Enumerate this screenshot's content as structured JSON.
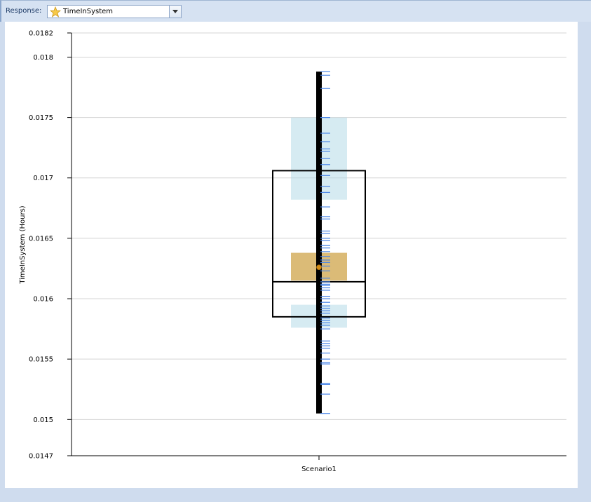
{
  "toolbar": {
    "response_label": "Response:",
    "response_value": "TimeInSystem",
    "response_icon": "star-icon"
  },
  "colors": {
    "accent_box": "#add8e6",
    "mean_box": "#d2aa55",
    "mean_point": "#d28c14",
    "observation": "#4a86e8",
    "whisker": "#000000"
  },
  "chart_data": {
    "type": "boxplot",
    "ylabel": "TimeInSystem (Hours)",
    "xlabel": "",
    "ylim": [
      0.0147,
      0.0182
    ],
    "yticks": [
      "0.0147",
      "0.015",
      "0.0155",
      "0.016",
      "0.0165",
      "0.017",
      "0.0175",
      "0.018",
      "0.0182"
    ],
    "grid": true,
    "categories": [
      "Scenario1"
    ],
    "series": [
      {
        "min": 0.01505,
        "max": 0.01788,
        "q1": 0.01585,
        "median": 0.01614,
        "q3": 0.01706,
        "mean": 0.01626,
        "mean_ci": [
          0.01615,
          0.01638
        ],
        "lower_pct_ci": [
          0.01576,
          0.01595
        ],
        "upper_pct_ci": [
          0.01682,
          0.0175
        ],
        "observations": [
          0.01788,
          0.01785,
          0.01774,
          0.0175,
          0.01737,
          0.0173,
          0.01724,
          0.01722,
          0.01716,
          0.01711,
          0.01702,
          0.01693,
          0.01688,
          0.01676,
          0.01668,
          0.01666,
          0.01656,
          0.01654,
          0.0165,
          0.01648,
          0.01644,
          0.01642,
          0.01639,
          0.01635,
          0.01632,
          0.0163,
          0.01627,
          0.01623,
          0.01617,
          0.01614,
          0.01612,
          0.01611,
          0.01609,
          0.01607,
          0.01602,
          0.016,
          0.01597,
          0.01594,
          0.01592,
          0.0159,
          0.01588,
          0.01584,
          0.01582,
          0.0158,
          0.01578,
          0.01575,
          0.01565,
          0.01563,
          0.01561,
          0.01559,
          0.01555,
          0.0155,
          0.01547,
          0.01546,
          0.0153,
          0.01529,
          0.01521,
          0.01505
        ]
      }
    ]
  }
}
